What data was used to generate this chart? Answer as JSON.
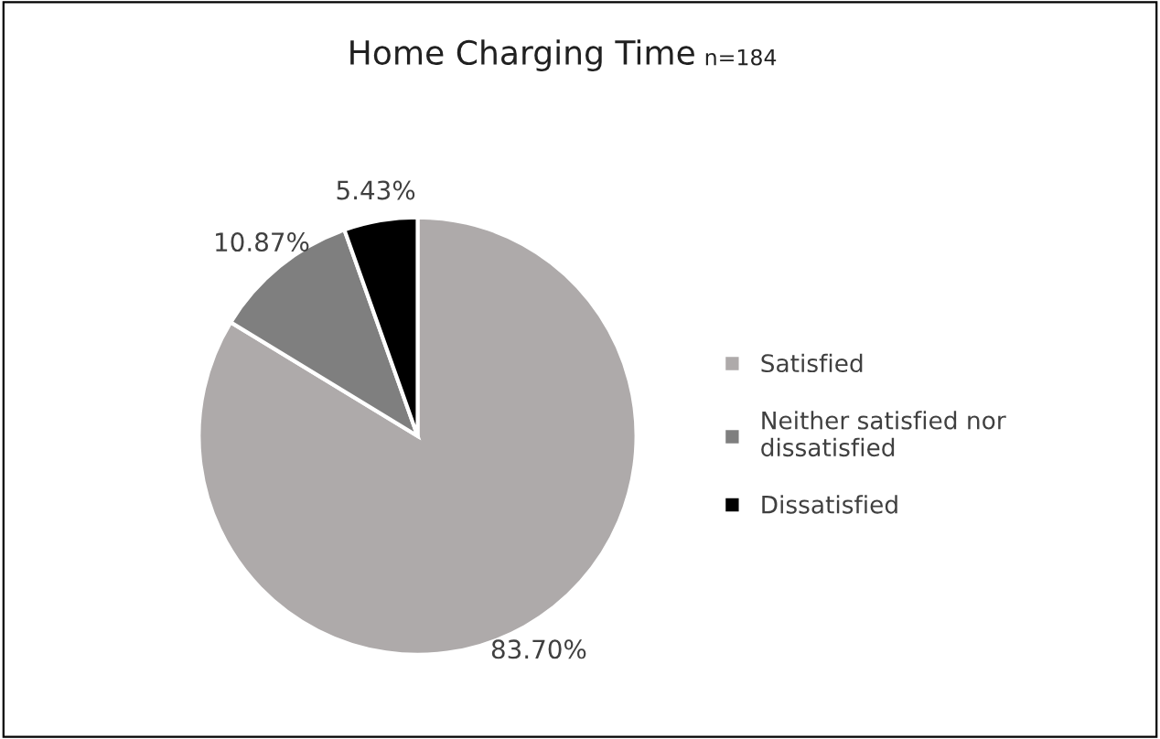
{
  "chart_data": {
    "type": "pie",
    "title": "Home Charging Time",
    "subtitle": "n=184",
    "categories": [
      "Satisfied",
      "Neither satisfied nor dissatisfied",
      "Dissatisfied"
    ],
    "values": [
      83.7,
      10.87,
      5.43
    ],
    "colors": [
      "#aeaaaa",
      "#7f7f7f",
      "#000000"
    ],
    "value_labels": [
      "83.70%",
      "10.87%",
      "5.43%"
    ],
    "legend": "right"
  }
}
